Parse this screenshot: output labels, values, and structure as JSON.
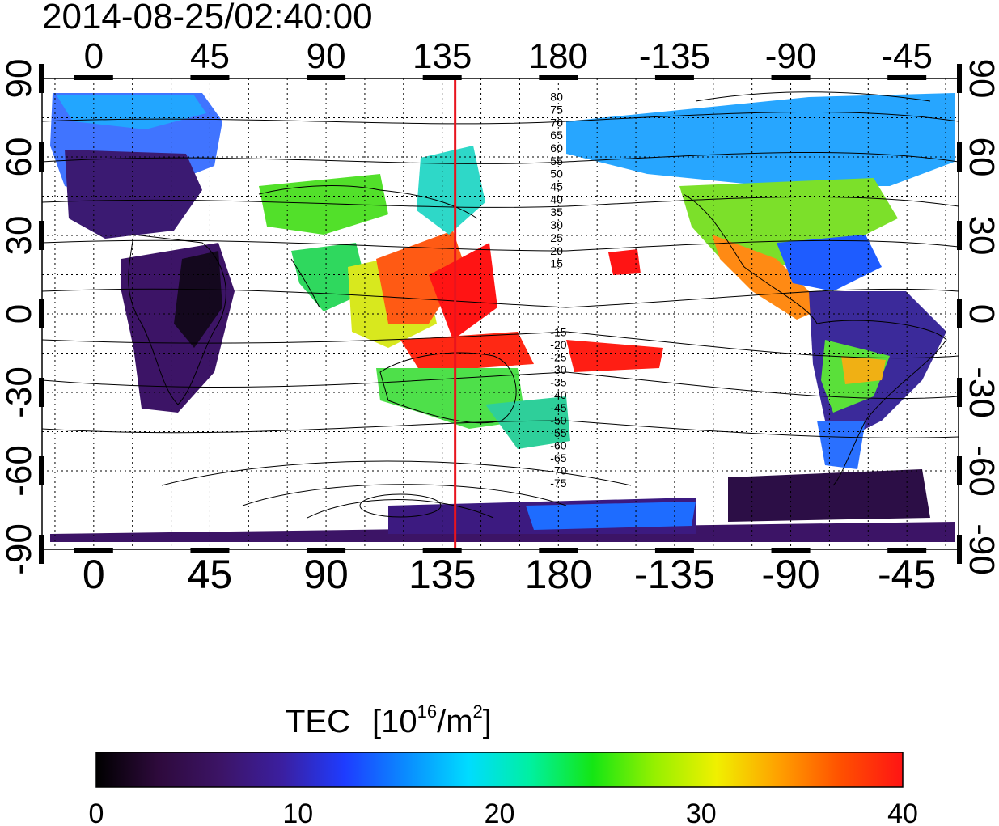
{
  "timestamp": "2014-08-25/02:40:00",
  "map": {
    "x_tick_labels": [
      "0",
      "45",
      "90",
      "135",
      "180",
      "-135",
      "-90",
      "-45"
    ],
    "x_tick_values": [
      0,
      45,
      90,
      135,
      180,
      -135,
      -90,
      -45
    ],
    "y_tick_labels": [
      "90",
      "60",
      "30",
      "0",
      "-30",
      "-60",
      "-90"
    ],
    "y_tick_values": [
      90,
      60,
      30,
      0,
      -30,
      -60,
      -90
    ],
    "longitude_range": [
      -20,
      335
    ],
    "latitude_range": [
      -90,
      90
    ],
    "grid": "dotted, every 15 degrees",
    "meridian_marker": {
      "longitude": 140,
      "color": "#e8141e"
    },
    "contour_labels_north": [
      "80",
      "75",
      "70",
      "65",
      "60",
      "55",
      "50",
      "45",
      "40",
      "35",
      "30",
      "25",
      "20",
      "15"
    ],
    "contour_labels_south": [
      "-15",
      "-20",
      "-25",
      "-30",
      "-35",
      "-40",
      "-45",
      "-50",
      "-55",
      "-60",
      "-65",
      "-70",
      "-75"
    ]
  },
  "colorbar": {
    "title": "TEC",
    "unit_base": "[10",
    "unit_exp": "16",
    "unit_mid": "/m",
    "unit_exp2": "2",
    "unit_end": "]",
    "min": 0,
    "max": 40,
    "tick_labels": [
      "0",
      "10",
      "20",
      "30",
      "40"
    ],
    "colors": [
      "#000000",
      "#2e0a3c",
      "#3c1466",
      "#3b1fa0",
      "#1e3cff",
      "#0a8cff",
      "#00dcff",
      "#00f0a0",
      "#14e614",
      "#96f000",
      "#f0f000",
      "#ffa000",
      "#ff5000",
      "#ff1414"
    ]
  }
}
